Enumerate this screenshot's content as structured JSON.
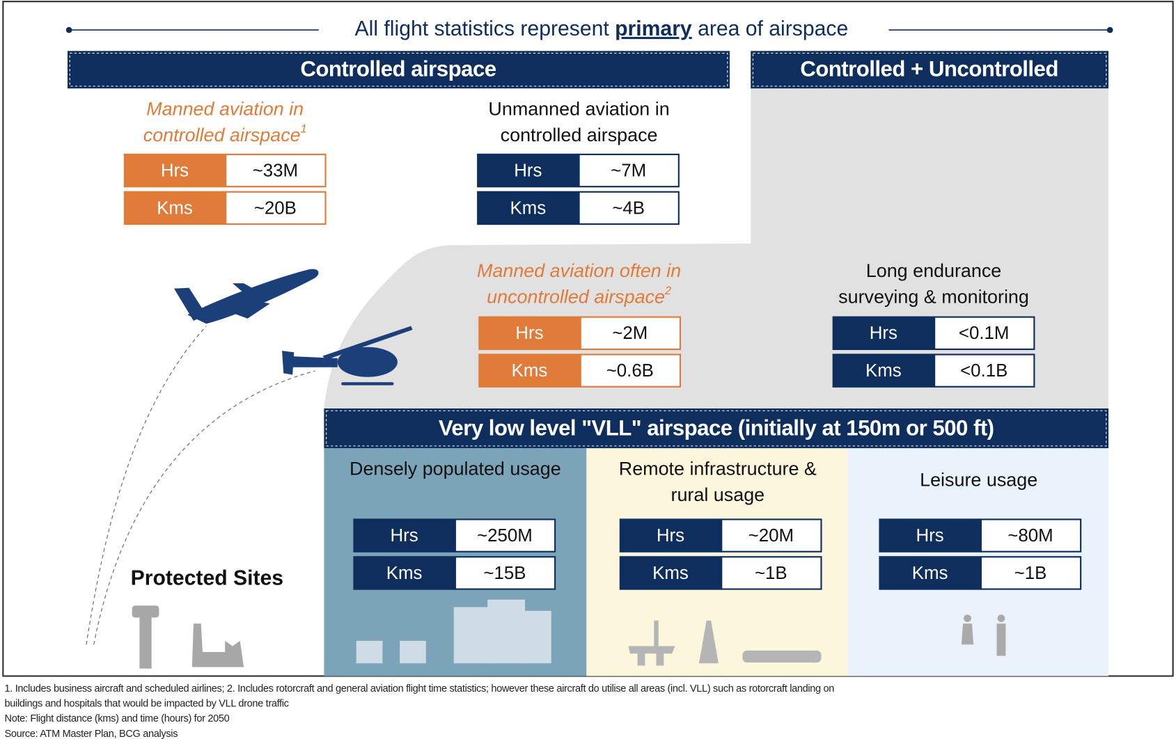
{
  "header": {
    "before": "All flight statistics represent",
    "emphasis": "primary",
    "after": "area of airspace"
  },
  "sections": [
    {
      "title": "Controlled airspace"
    },
    {
      "title": "Controlled + Uncontrolled"
    },
    {
      "title": "Very low level \"VLL\" airspace (initially at 150m or 500 ft)"
    }
  ],
  "groups": [
    {
      "label_lines": [
        "Manned aviation in",
        "controlled airspace"
      ],
      "note": "1",
      "color": "#e07b39",
      "italic": true,
      "rows": [
        [
          "Hrs",
          "~33M"
        ],
        [
          "Kms",
          "~20B"
        ]
      ]
    },
    {
      "label_lines": [
        "Unmanned aviation in",
        "controlled airspace"
      ],
      "color": "#0e2f5e",
      "italic": false,
      "rows": [
        [
          "Hrs",
          "~7M"
        ],
        [
          "Kms",
          "~4B"
        ]
      ]
    },
    {
      "label_lines": [
        "Manned aviation often in",
        "uncontrolled airspace"
      ],
      "note": "2",
      "color": "#e07b39",
      "italic": true,
      "rows": [
        [
          "Hrs",
          "~2M"
        ],
        [
          "Kms",
          "~0.6B"
        ]
      ]
    },
    {
      "label_lines": [
        "Long endurance",
        "surveying & monitoring"
      ],
      "color": "#0e2f5e",
      "italic": false,
      "rows": [
        [
          "Hrs",
          "<0.1M"
        ],
        [
          "Kms",
          "<0.1B"
        ]
      ]
    },
    {
      "label_lines": [
        "Densely populated  usage"
      ],
      "color": "#0e2f5e",
      "italic": false,
      "rows": [
        [
          "Hrs",
          "~250M"
        ],
        [
          "Kms",
          "~15B"
        ]
      ]
    },
    {
      "label_lines": [
        "Remote infrastructure &",
        "rural usage"
      ],
      "color": "#0e2f5e",
      "italic": false,
      "rows": [
        [
          "Hrs",
          "~20M"
        ],
        [
          "Kms",
          "~1B"
        ]
      ]
    },
    {
      "label_lines": [
        "Leisure usage"
      ],
      "color": "#0e2f5e",
      "italic": false,
      "rows": [
        [
          "Hrs",
          "~80M"
        ],
        [
          "Kms",
          "~1B"
        ]
      ]
    }
  ],
  "protected_sites": "Protected Sites",
  "footnotes": [
    "1. Includes business aircraft and scheduled airlines; 2. Includes rotorcraft and general aviation flight time statistics; however these aircraft do utilise all areas (incl. VLL) such as rotorcraft landing on",
    "buildings and hospitals that would be impacted by VLL drone traffic",
    "Note: Flight distance (kms) and time (hours) for 2050",
    "Source: ATM Master Plan, BCG analysis"
  ]
}
